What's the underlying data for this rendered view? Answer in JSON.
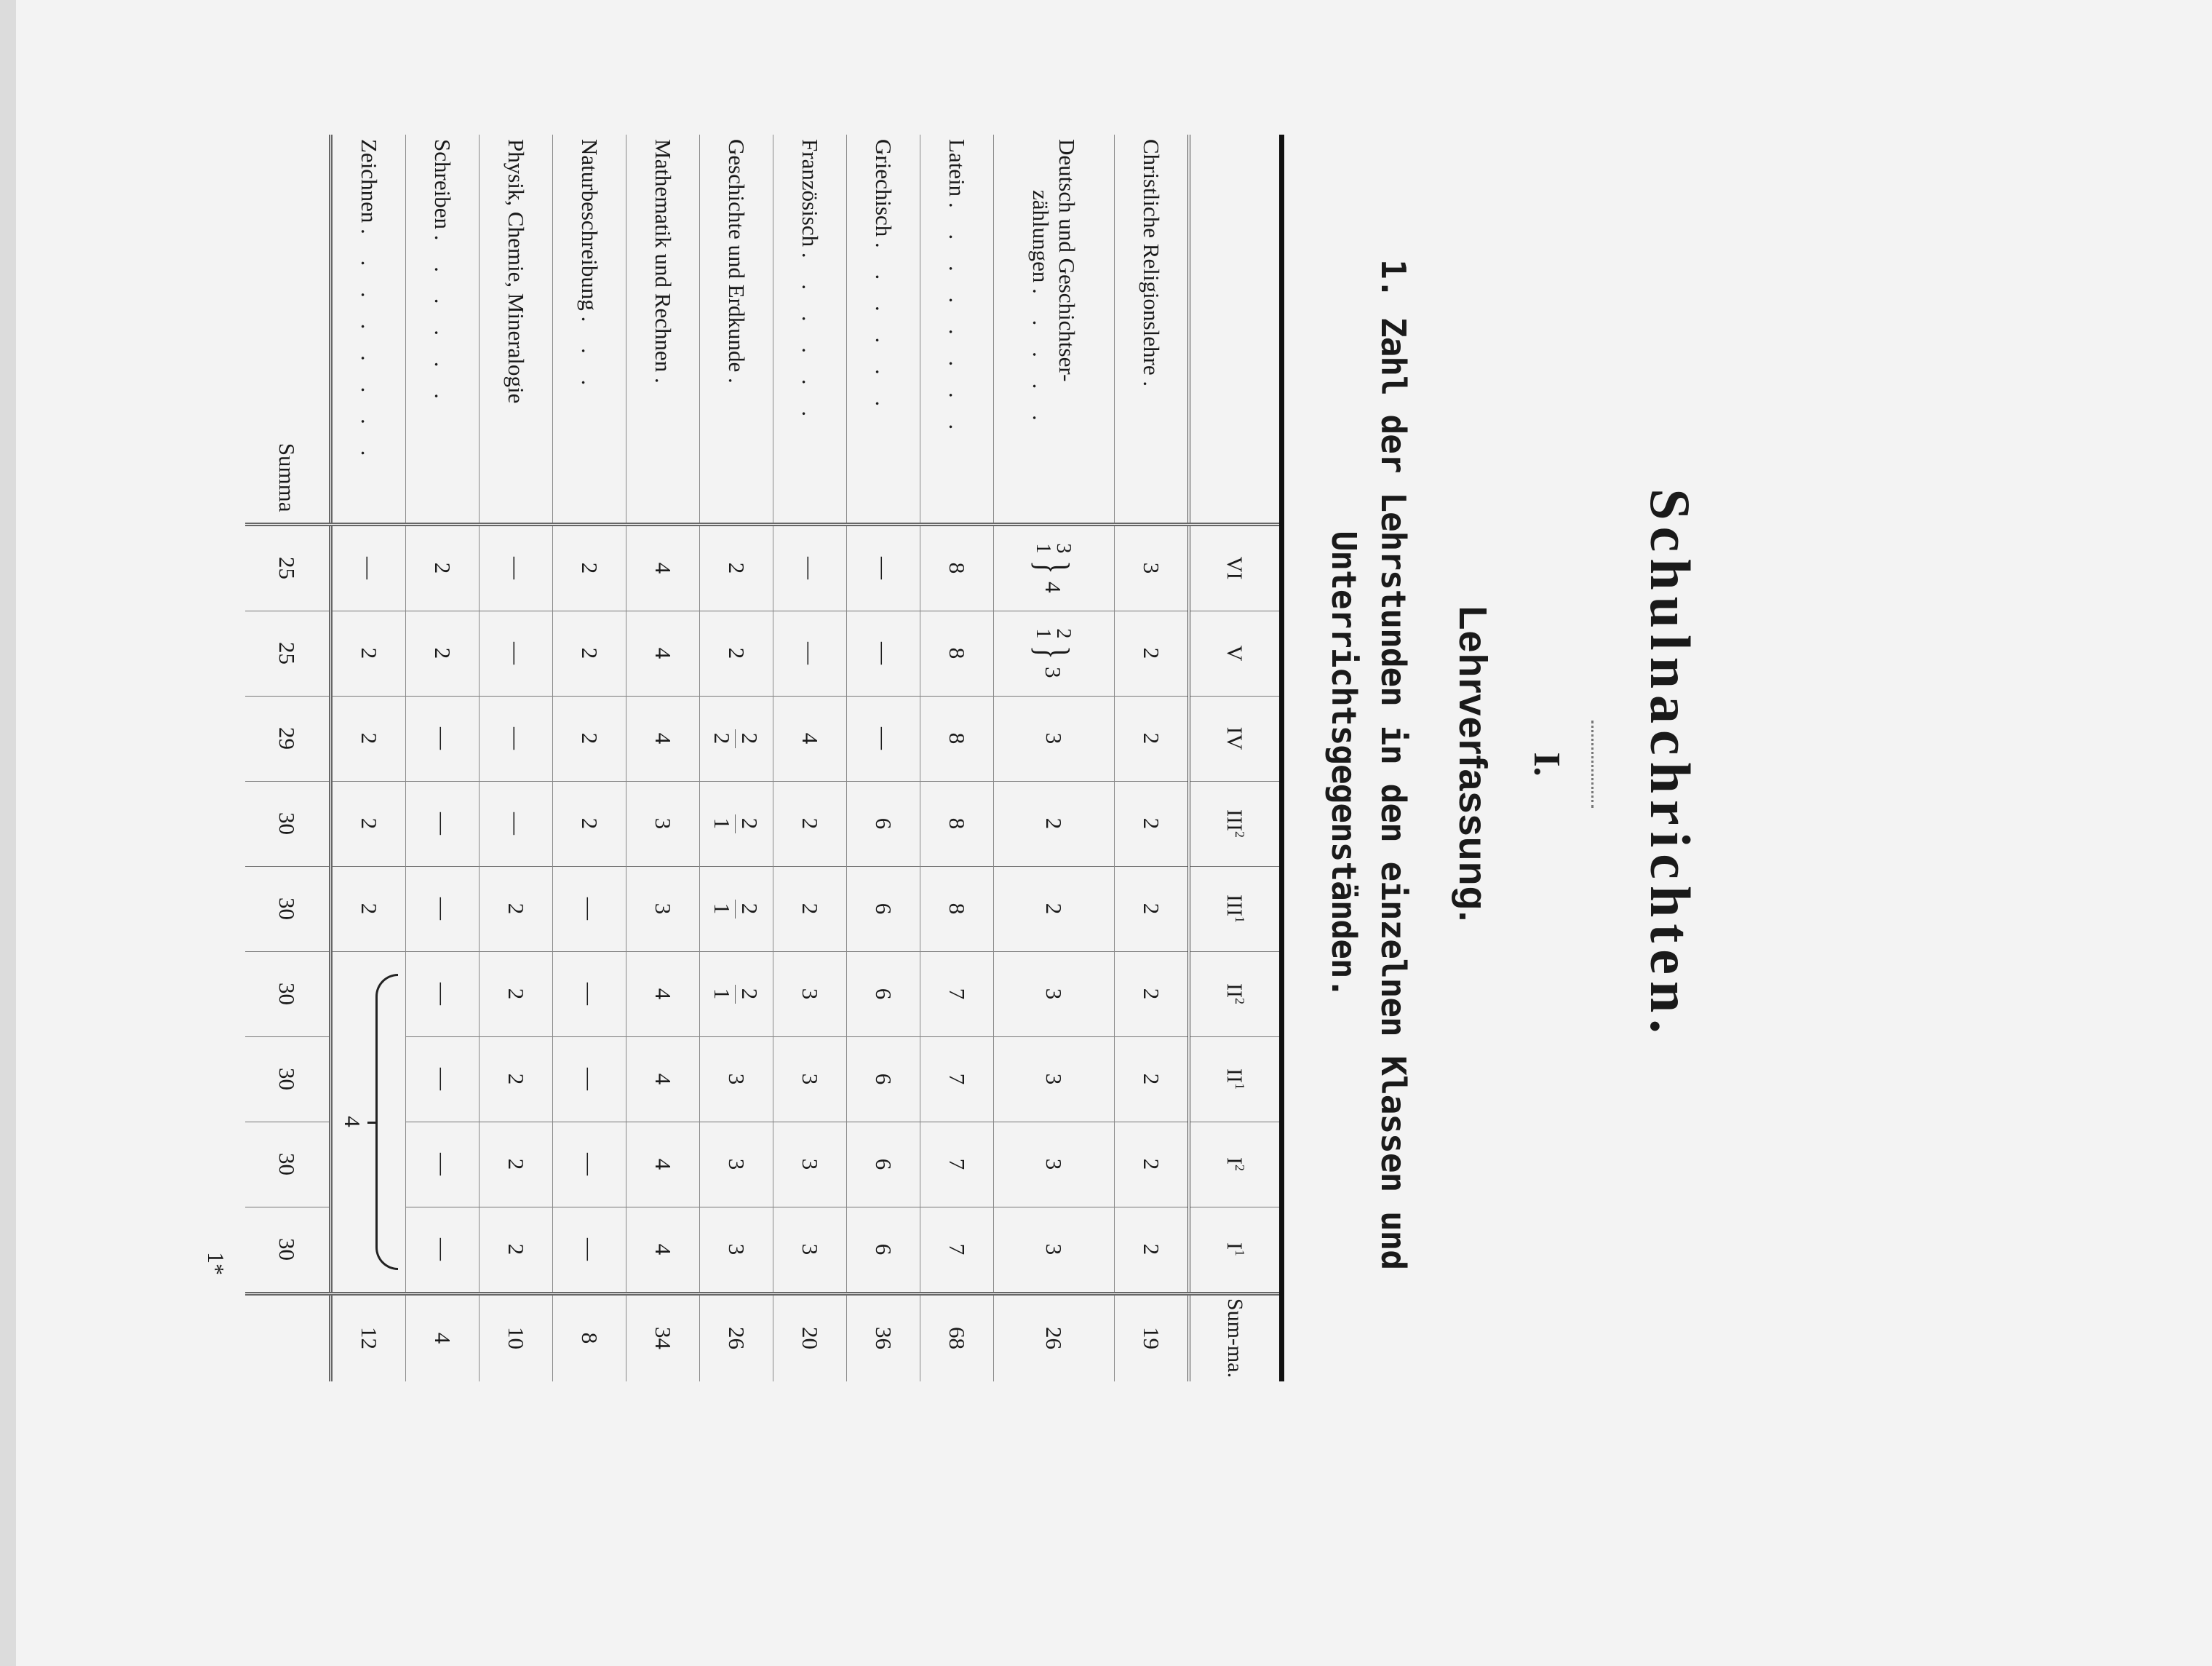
{
  "heading": {
    "title": "Schulnachrichten.",
    "section_number": "I.",
    "section_title": "Lehrverfassung.",
    "subtitle_line1": "1. Zahl der Lehrstunden in den einzelnen Klassen und",
    "subtitle_line2": "Unterrichtsgegenständen."
  },
  "table": {
    "columns": [
      {
        "base": "VI",
        "sup": ""
      },
      {
        "base": "V",
        "sup": ""
      },
      {
        "base": "IV",
        "sup": ""
      },
      {
        "base": "III",
        "sup": "2"
      },
      {
        "base": "III",
        "sup": "1"
      },
      {
        "base": "II",
        "sup": "2"
      },
      {
        "base": "II",
        "sup": "1"
      },
      {
        "base": "I",
        "sup": "2"
      },
      {
        "base": "I",
        "sup": "1"
      }
    ],
    "sum_header": "Sum-ma.",
    "rows": [
      {
        "label": "Christliche Religionslehre",
        "leader": ".",
        "cells": [
          "3",
          "2",
          "2",
          "2",
          "2",
          "2",
          "2",
          "2",
          "2"
        ],
        "sum": "19"
      },
      {
        "label": "Deutsch und Geschichtser-",
        "label2": "zählungen",
        "leader": ". . . . .",
        "cells": [
          {
            "top": "3",
            "bottom": "1",
            "total": "4"
          },
          {
            "top": "2",
            "bottom": "1",
            "total": "3"
          },
          "3",
          "2",
          "2",
          "3",
          "3",
          "3",
          "3"
        ],
        "sum": "26"
      },
      {
        "label": "Latein",
        "leader": ". . . . . . . .",
        "cells": [
          "8",
          "8",
          "8",
          "8",
          "8",
          "7",
          "7",
          "7",
          "7"
        ],
        "sum": "68"
      },
      {
        "label": "Griechisch",
        "leader": ". . . . . .",
        "cells": [
          "—",
          "—",
          "—",
          "6",
          "6",
          "6",
          "6",
          "6",
          "6"
        ],
        "sum": "36"
      },
      {
        "label": "Französisch",
        "leader": ". . . . . .",
        "cells": [
          "—",
          "—",
          "4",
          "2",
          "2",
          "3",
          "3",
          "3",
          "3"
        ],
        "sum": "20"
      },
      {
        "label": "Geschichte und Erdkunde",
        "leader": ".",
        "cells": [
          "2",
          "2",
          {
            "upper": "2",
            "lower": "2"
          },
          {
            "upper": "2",
            "lower": "1"
          },
          {
            "upper": "2",
            "lower": "1"
          },
          {
            "upper": "2",
            "lower": "1"
          },
          "3",
          "3",
          "3"
        ],
        "sum": "26"
      },
      {
        "label": "Mathematik und Rechnen",
        "leader": ".",
        "cells": [
          "4",
          "4",
          "4",
          "3",
          "3",
          "4",
          "4",
          "4",
          "4"
        ],
        "sum": "34"
      },
      {
        "label": "Naturbeschreibung",
        "leader": ". . .",
        "cells": [
          "2",
          "2",
          "2",
          "2",
          "—",
          "—",
          "—",
          "—",
          "—"
        ],
        "sum": "8"
      },
      {
        "label": "Physik, Chemie, Mineralogie",
        "leader": "",
        "cells": [
          "—",
          "—",
          "—",
          "—",
          "2",
          "2",
          "2",
          "2",
          "2"
        ],
        "sum": "10"
      },
      {
        "label": "Schreiben",
        "leader": ". . . . . .",
        "cells": [
          "2",
          "2",
          "—",
          "—",
          "—",
          "—",
          "—",
          "—",
          "—"
        ],
        "sum": "4"
      },
      {
        "label": "Zeichnen",
        "leader": ". . . . . . . .",
        "cells": [
          "—",
          "2",
          "2",
          "2",
          "2"
        ],
        "brace_value": "4",
        "sum": "12"
      }
    ],
    "summa_label": "Summa",
    "summa_values": [
      "25",
      "25",
      "29",
      "30",
      "30",
      "30",
      "30",
      "30",
      "30"
    ]
  },
  "page_number": "1*"
}
